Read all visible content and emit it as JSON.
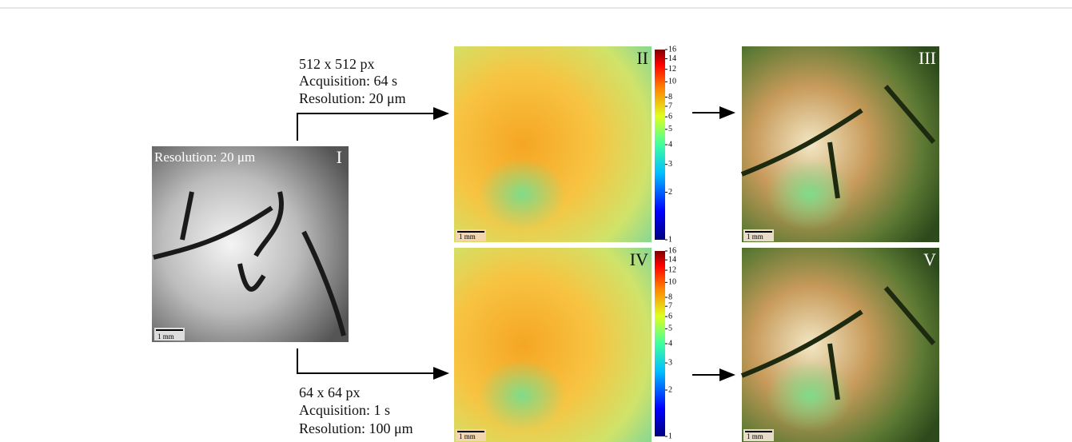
{
  "left_panel": {
    "label": "I",
    "annotation": "Resolution: 20 μm",
    "scale_bar": "1 mm"
  },
  "top_branch": {
    "lines": [
      "512 x 512 px",
      "Acquisition: 64 s",
      "Resolution: 20 μm"
    ]
  },
  "bottom_branch": {
    "lines": [
      "64 x 64 px",
      "Acquisition: 1 s",
      "Resolution: 100 μm"
    ]
  },
  "panels": [
    {
      "label": "II",
      "scale_bar": "1 mm"
    },
    {
      "label": "III",
      "scale_bar": "1 mm"
    },
    {
      "label": "IV",
      "scale_bar": "1 mm"
    },
    {
      "label": "V",
      "scale_bar": "1 mm"
    }
  ],
  "colorbars": [
    {
      "log_scale": true,
      "lim": [
        1,
        16
      ],
      "ticks": [
        1,
        2,
        3,
        4,
        5,
        6,
        7,
        8,
        10,
        12,
        14,
        16
      ]
    },
    {
      "log_scale": true,
      "lim": [
        1,
        16
      ],
      "ticks": [
        1,
        2,
        3,
        4,
        5,
        6,
        7,
        8,
        10,
        12,
        14,
        16
      ]
    }
  ]
}
